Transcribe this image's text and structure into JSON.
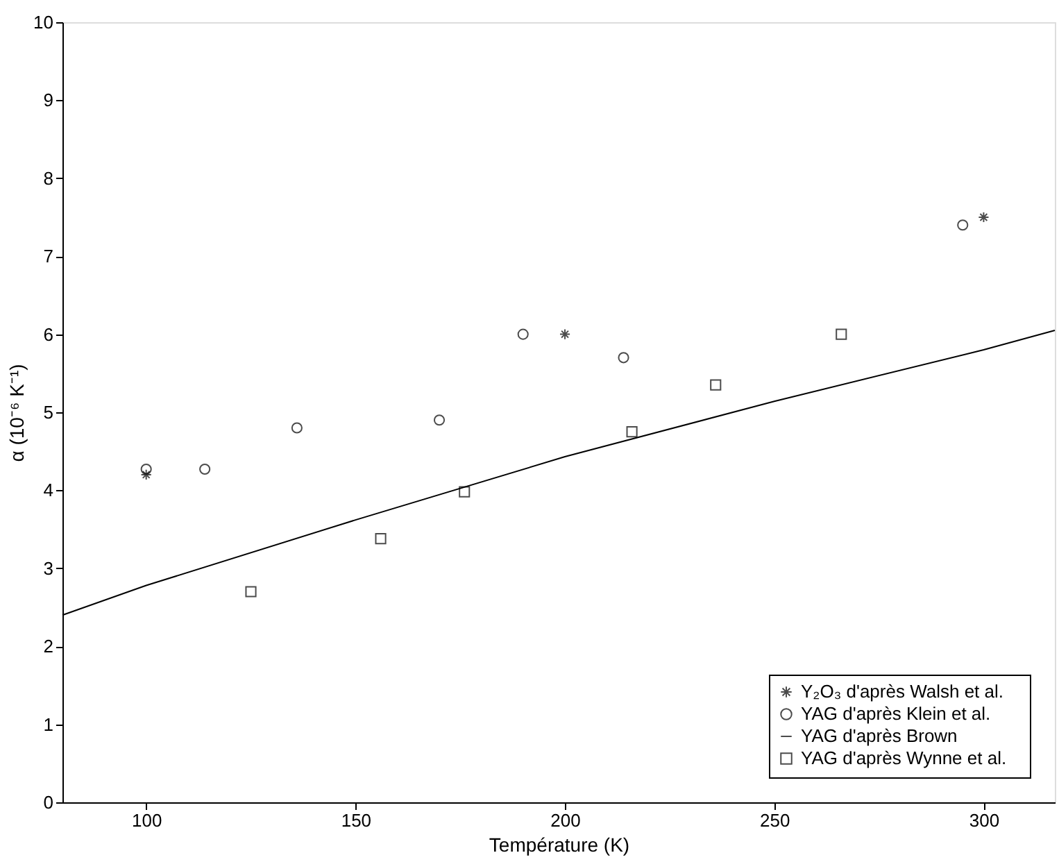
{
  "chart_data": {
    "type": "scatter",
    "xlabel": "Température (K)",
    "ylabel": "α (10⁻⁶ K⁻¹)",
    "xlim": [
      80,
      317
    ],
    "ylim": [
      0,
      10
    ],
    "xticks": [
      100,
      150,
      200,
      250,
      300
    ],
    "yticks": [
      0,
      1,
      2,
      3,
      4,
      5,
      6,
      7,
      8,
      9,
      10
    ],
    "grid": false,
    "legend": "bottom right",
    "series": [
      {
        "name": "Y₂O₃    d'après Walsh et al.",
        "color": "#000000",
        "marker": "cross",
        "x": [
          100,
          200,
          300
        ],
        "values": [
          4.2,
          6.0,
          7.5
        ]
      },
      {
        "name": "YAG    d'après Klein et al.",
        "color": "#000000",
        "marker": "circle",
        "x": [
          100,
          114,
          136,
          170,
          190,
          214,
          295
        ],
        "values": [
          4.27,
          4.27,
          4.8,
          4.9,
          6.0,
          5.7,
          7.4
        ]
      },
      {
        "name": "YAG    d'après Brown",
        "color": "#000000",
        "type": "line",
        "marker": "none",
        "x": [
          80,
          100,
          150,
          200,
          250,
          300,
          317
        ],
        "values": [
          2.4,
          2.78,
          3.62,
          4.43,
          5.14,
          5.8,
          6.05
        ]
      },
      {
        "name": "YAG    d'après Wynne et al.",
        "color": "#000000",
        "marker": "square",
        "x": [
          125,
          156,
          176,
          216,
          236,
          266
        ],
        "values": [
          2.7,
          3.38,
          3.98,
          4.75,
          5.35,
          6.0
        ]
      }
    ]
  }
}
